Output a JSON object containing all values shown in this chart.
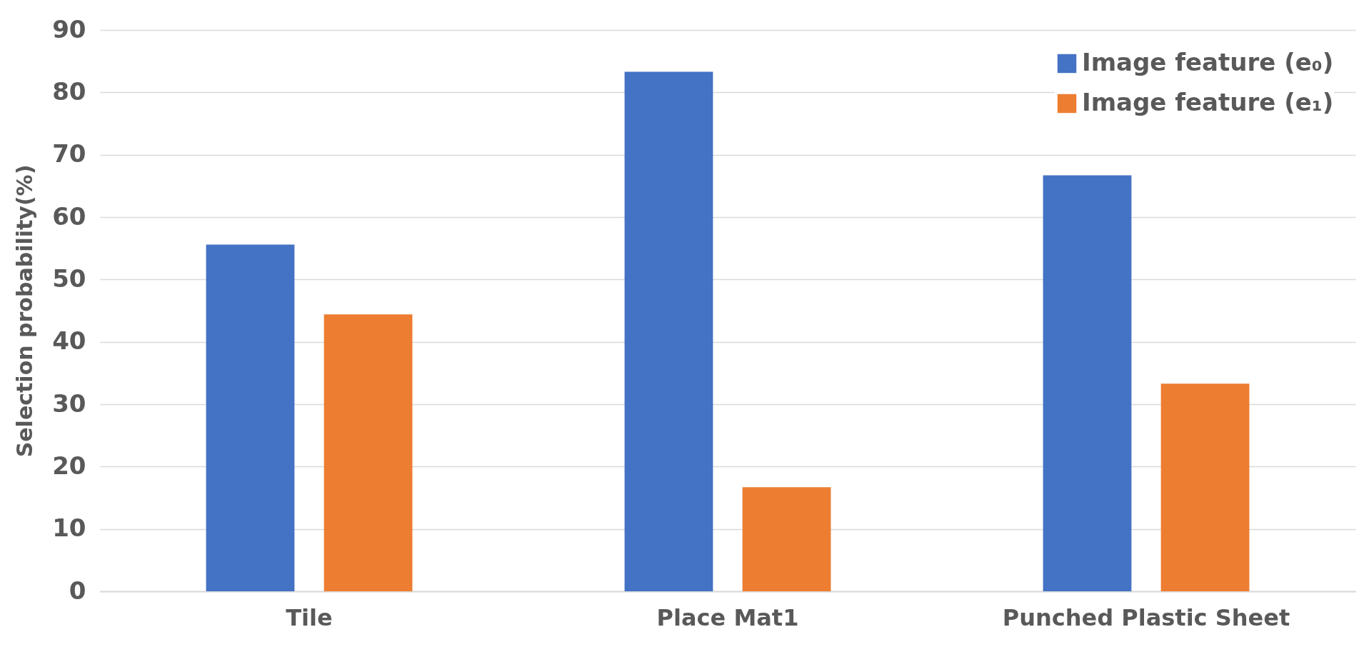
{
  "chart_data": {
    "type": "bar",
    "ylabel": "Selection probability(%)",
    "categories": [
      "Tile",
      "Place Mat1",
      "Punched Plastic Sheet"
    ],
    "series": [
      {
        "name": "Image feature (e₀)",
        "color": "#4472c4",
        "values": [
          55.6,
          83.3,
          66.7
        ]
      },
      {
        "name": "Image feature (e₁)",
        "color": "#ed7d31",
        "values": [
          44.4,
          16.7,
          33.3
        ]
      }
    ],
    "ylim": [
      0,
      90
    ],
    "yticks": [
      0,
      10,
      20,
      30,
      40,
      50,
      60,
      70,
      80,
      90
    ],
    "grid": "y",
    "legend": "top right"
  }
}
